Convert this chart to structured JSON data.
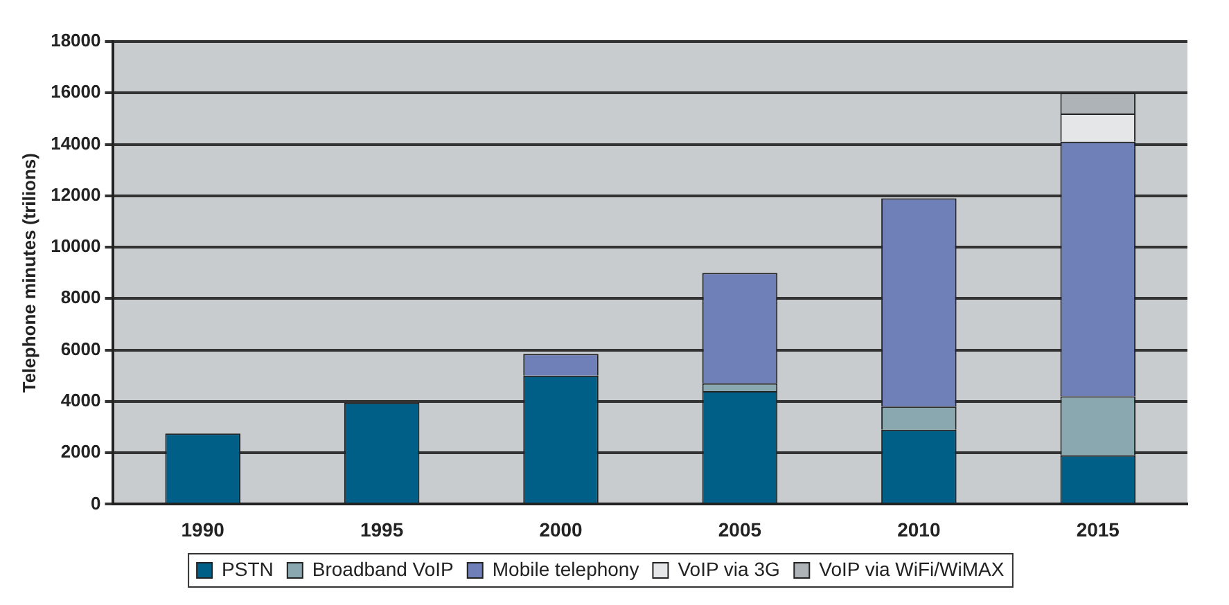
{
  "chart_data": {
    "type": "bar",
    "stacked": true,
    "ylabel": "Telephone minutes (trilions)",
    "categories": [
      "1990",
      "1995",
      "2000",
      "2005",
      "2010",
      "2015"
    ],
    "series": [
      {
        "name": "PSTN",
        "color": "#005f87",
        "values": [
          2750,
          3950,
          5000,
          4400,
          2900,
          1900
        ]
      },
      {
        "name": "Broadband VoIP",
        "color": "#8aa8b0",
        "values": [
          0,
          0,
          0,
          300,
          900,
          2300
        ]
      },
      {
        "name": "Mobile telephony",
        "color": "#6f7fb8",
        "values": [
          0,
          0,
          850,
          4300,
          8100,
          9900
        ]
      },
      {
        "name": "VoIP via 3G",
        "color": "#e4e6e8",
        "values": [
          0,
          0,
          0,
          0,
          0,
          1100
        ]
      },
      {
        "name": "VoIP via WiFi/WiMAX",
        "color": "#aeb3b8",
        "values": [
          0,
          0,
          0,
          0,
          0,
          800
        ]
      }
    ],
    "ylim": [
      0,
      18000
    ],
    "yticks": [
      0,
      2000,
      4000,
      6000,
      8000,
      10000,
      12000,
      14000,
      16000,
      18000
    ],
    "grid": "y",
    "legend": "bottom"
  }
}
